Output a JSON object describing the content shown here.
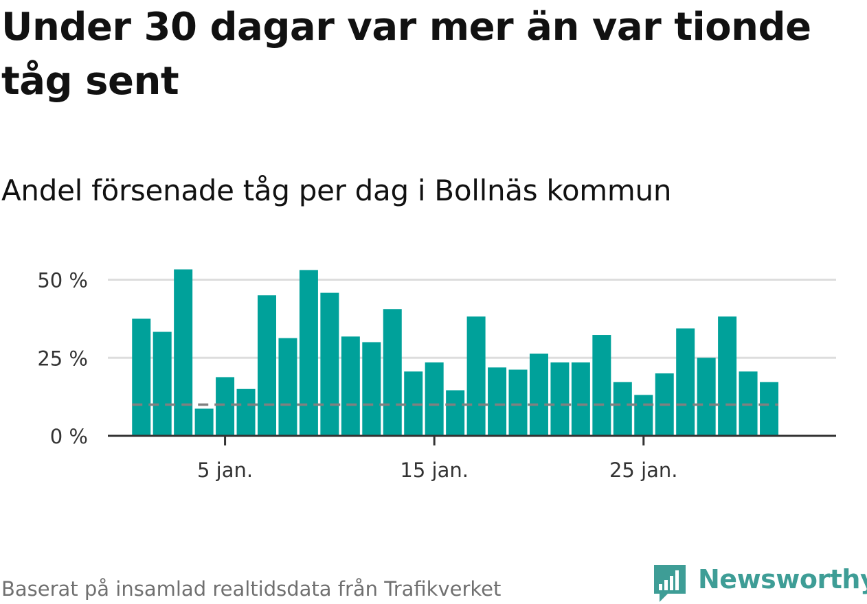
{
  "title": "Under 30 dagar var mer än var tionde tåg sent",
  "subtitle": "Andel försenade tåg per dag i Bollnäs kommun",
  "source": "Baserat på insamlad realtidsdata från Trafikverket",
  "logo": {
    "text": "Newsworthy",
    "icon": "newsworthy-logo-icon",
    "color": "#3e9d96"
  },
  "colors": {
    "bar": "#00a19a",
    "grid": "#dddddd",
    "axis": "#333333",
    "reference_line": "#808080",
    "text": "#333333"
  },
  "chart_data": {
    "type": "bar",
    "x": [
      1,
      2,
      3,
      4,
      5,
      6,
      7,
      8,
      9,
      10,
      11,
      12,
      13,
      14,
      15,
      16,
      17,
      18,
      19,
      20,
      21,
      22,
      23,
      24,
      25,
      26,
      27,
      28,
      29,
      30,
      31
    ],
    "values": [
      37.5,
      33.3,
      53.3,
      8.7,
      18.8,
      15.0,
      45.0,
      31.3,
      53.1,
      45.8,
      31.8,
      30.0,
      40.6,
      20.6,
      23.5,
      14.6,
      38.2,
      21.9,
      21.2,
      26.3,
      23.5,
      23.5,
      32.3,
      17.2,
      13.1,
      20.0,
      34.4,
      25.0,
      38.2,
      20.6,
      17.2
    ],
    "reference_line": 10,
    "xticks": [
      {
        "x": 5,
        "label": "5 jan."
      },
      {
        "x": 15,
        "label": "15 jan."
      },
      {
        "x": 25,
        "label": "25 jan."
      }
    ],
    "yticks": [
      {
        "value": 0,
        "label": "0 %"
      },
      {
        "value": 25,
        "label": "25 %"
      },
      {
        "value": 50,
        "label": "50 %"
      }
    ],
    "ylim": [
      0,
      57.5
    ],
    "xlim": [
      -0.6,
      34.2
    ],
    "grid": true,
    "xlabel": "",
    "ylabel": ""
  }
}
